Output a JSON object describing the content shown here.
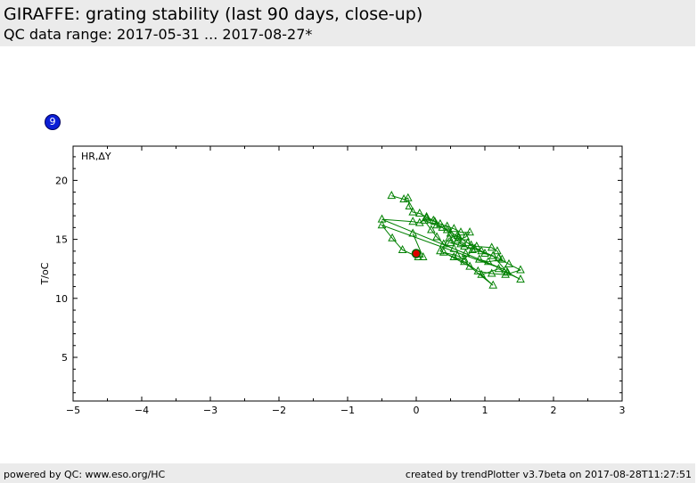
{
  "header": {
    "title": "GIRAFFE: grating stability (last 90 days, close-up)",
    "subtitle": "QC data range: 2017-05-31 ... 2017-08-27*"
  },
  "badge": {
    "number": "9",
    "color": "#0b1fd6"
  },
  "footer": {
    "left": "powered by QC: www.eso.org/HC",
    "right": "created by trendPlotter v3.7beta on 2017-08-28T11:27:51"
  },
  "colors": {
    "series": "#008000",
    "reference": "#e00000",
    "reference_edge": "#006400"
  },
  "chart_data": {
    "type": "line",
    "title": "HR,ΔY",
    "xlabel": "",
    "ylabel": "T/oC",
    "xlim": [
      -5,
      3
    ],
    "ylim": [
      1.3,
      22.9
    ],
    "xticks": [
      -5,
      -4,
      -3,
      -2,
      -1,
      0,
      1,
      2,
      3
    ],
    "xtick_labels": [
      "−5",
      "−4",
      "−3",
      "−2",
      "−1",
      "0",
      "1",
      "2",
      "3"
    ],
    "yticks": [
      5,
      10,
      15,
      20
    ],
    "ytick_labels": [
      "5",
      "10",
      "15",
      "20"
    ],
    "grid": false,
    "series": [
      {
        "marker": "triangle",
        "points": [
          [
            -0.36,
            18.7
          ],
          [
            -0.18,
            18.4
          ],
          [
            -0.12,
            18.5
          ],
          [
            -0.1,
            17.8
          ],
          [
            -0.05,
            17.3
          ],
          [
            0.05,
            17.2
          ],
          [
            0.15,
            16.9
          ],
          [
            0.25,
            16.6
          ],
          [
            0.35,
            16.3
          ],
          [
            0.45,
            16.1
          ],
          [
            0.55,
            15.9
          ],
          [
            0.65,
            15.6
          ],
          [
            0.78,
            15.6
          ],
          [
            0.72,
            15.2
          ],
          [
            0.6,
            14.9
          ],
          [
            0.5,
            14.7
          ],
          [
            0.7,
            14.4
          ],
          [
            0.85,
            14.2
          ],
          [
            1.0,
            13.8
          ],
          [
            1.2,
            13.4
          ],
          [
            1.35,
            12.9
          ],
          [
            1.52,
            12.4
          ],
          [
            1.3,
            12.0
          ],
          [
            1.1,
            12.1
          ],
          [
            0.9,
            12.3
          ],
          [
            0.7,
            13.1
          ],
          [
            0.55,
            13.5
          ],
          [
            0.35,
            14.0
          ],
          [
            0.48,
            15.1
          ],
          [
            0.6,
            15.3
          ],
          [
            0.75,
            14.7
          ],
          [
            0.88,
            14.4
          ],
          [
            1.1,
            14.3
          ],
          [
            1.18,
            14.0
          ],
          [
            1.25,
            13.3
          ],
          [
            1.05,
            13.1
          ],
          [
            0.92,
            13.3
          ],
          [
            0.72,
            13.8
          ],
          [
            0.55,
            14.2
          ],
          [
            0.4,
            14.6
          ],
          [
            0.3,
            15.2
          ],
          [
            0.22,
            15.8
          ],
          [
            0.12,
            16.6
          ],
          [
            0.3,
            16.2
          ],
          [
            0.45,
            15.8
          ],
          [
            0.62,
            15.2
          ],
          [
            0.8,
            14.5
          ],
          [
            0.95,
            14.0
          ],
          [
            1.12,
            13.6
          ],
          [
            1.33,
            12.2
          ],
          [
            1.52,
            11.6
          ],
          [
            1.2,
            12.5
          ],
          [
            0.95,
            12.0
          ],
          [
            1.12,
            11.1
          ],
          [
            0.78,
            12.7
          ],
          [
            0.4,
            13.9
          ],
          [
            0.6,
            13.6
          ],
          [
            0.7,
            13.3
          ],
          [
            0.82,
            14.1
          ],
          [
            0.65,
            14.6
          ],
          [
            0.5,
            15.5
          ],
          [
            0.38,
            16.0
          ],
          [
            0.27,
            16.5
          ],
          [
            0.15,
            16.8
          ],
          [
            0.05,
            16.4
          ],
          [
            -0.05,
            16.5
          ],
          [
            -0.5,
            16.7
          ],
          [
            1.3,
            12.4
          ],
          [
            -0.5,
            16.2
          ],
          [
            -0.35,
            15.1
          ],
          [
            -0.2,
            14.1
          ],
          [
            0.03,
            13.5
          ],
          [
            0.1,
            13.5
          ],
          [
            -0.05,
            15.5
          ]
        ]
      }
    ],
    "reference_point": [
      0.0,
      13.8
    ]
  }
}
